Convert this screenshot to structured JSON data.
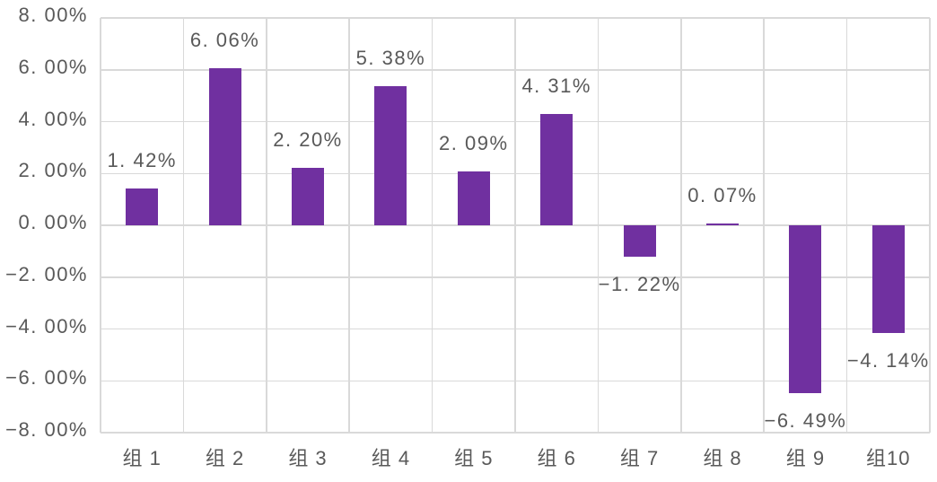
{
  "chart_data": {
    "type": "bar",
    "title": "",
    "xlabel": "",
    "ylabel": "",
    "categories": [
      "组 1",
      "组 2",
      "组 3",
      "组 4",
      "组 5",
      "组 6",
      "组 7",
      "组 8",
      "组 9",
      "组10"
    ],
    "values": [
      1.42,
      6.06,
      2.2,
      5.38,
      2.09,
      4.31,
      -1.22,
      0.07,
      -6.49,
      -4.14
    ],
    "value_labels": [
      "1. 42%",
      "6. 06%",
      "2. 20%",
      "5. 38%",
      "2. 09%",
      "4. 31%",
      "−1. 22%",
      "0. 07%",
      "−6. 49%",
      "−4. 14%"
    ],
    "ylim": [
      -8,
      8
    ],
    "ytick_step": 2,
    "ytick_labels_top_to_bottom": [
      "8. 00%",
      "6. 00%",
      "4. 00%",
      "2. 00%",
      "0. 00%",
      "−2. 00%",
      "−4. 00%",
      "−6. 00%",
      "−8. 00%"
    ],
    "grid": true,
    "legend": "none",
    "colors": {
      "bar": "#7030A0",
      "gridline": "#D9D9D9",
      "text": "#595959",
      "background": "#FFFFFF"
    }
  }
}
